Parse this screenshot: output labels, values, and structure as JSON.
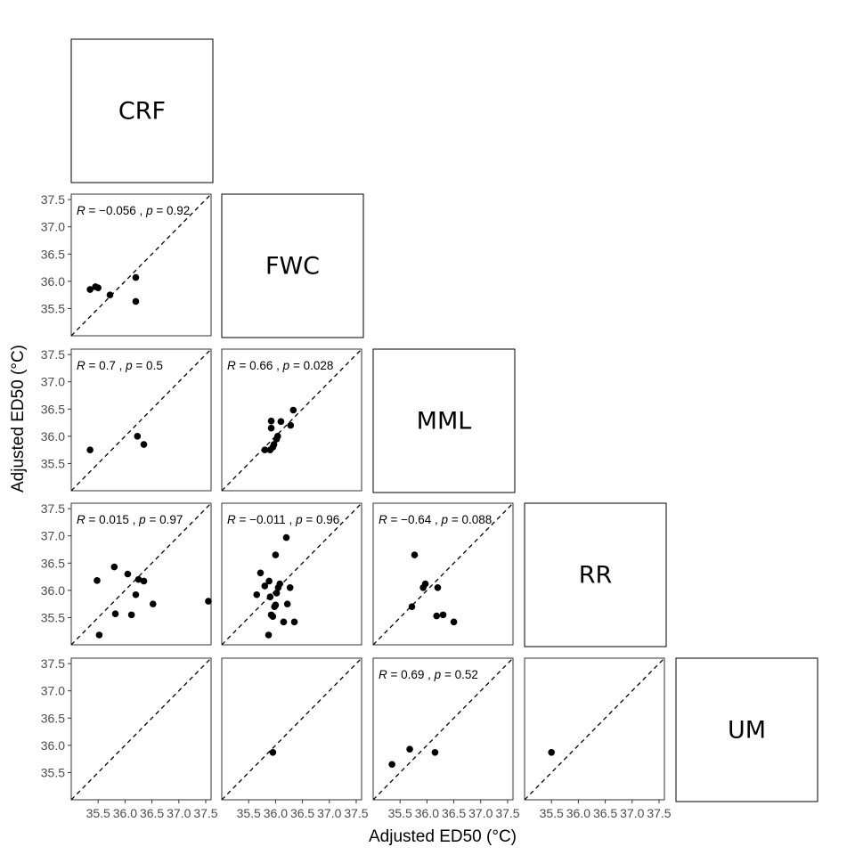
{
  "chart_data": {
    "type": "scatter",
    "layout": "lower-triangle pairwise scatterplot matrix",
    "xlabel": "Adjusted ED50 (°C)",
    "ylabel": "Adjusted ED50 (°C)",
    "xlim": [
      35.0,
      37.6
    ],
    "ylim": [
      35.0,
      37.6
    ],
    "xticks": [
      "35.5",
      "36.0",
      "36.5",
      "37.0",
      "37.5"
    ],
    "yticks": [
      "35.5",
      "36.0",
      "36.5",
      "37.0",
      "37.5"
    ],
    "reference_line": "y = x (dashed)",
    "point_color": "#000000",
    "diagonal_labels": [
      "CRF",
      "FWC",
      "MML",
      "RR",
      "UM"
    ],
    "panels": [
      {
        "row": 1,
        "col": 0,
        "y_site": "FWC",
        "x_site": "CRF",
        "annotation": {
          "r": "−0.056",
          "p": "0.92"
        },
        "points": [
          [
            35.35,
            35.85
          ],
          [
            35.45,
            35.9
          ],
          [
            35.5,
            35.88
          ],
          [
            35.72,
            35.75
          ],
          [
            36.2,
            36.07
          ],
          [
            36.2,
            35.63
          ]
        ]
      },
      {
        "row": 2,
        "col": 0,
        "y_site": "MML",
        "x_site": "CRF",
        "annotation": {
          "r": "0.7",
          "p": "0.5"
        },
        "points": [
          [
            35.35,
            35.75
          ],
          [
            36.23,
            36.0
          ],
          [
            36.35,
            35.85
          ]
        ]
      },
      {
        "row": 2,
        "col": 1,
        "y_site": "MML",
        "x_site": "FWC",
        "annotation": {
          "r": "0.66",
          "p": "0.028"
        },
        "points": [
          [
            35.8,
            35.75
          ],
          [
            35.9,
            35.75
          ],
          [
            35.92,
            36.15
          ],
          [
            35.92,
            36.28
          ],
          [
            35.95,
            35.8
          ],
          [
            35.97,
            35.85
          ],
          [
            36.02,
            35.95
          ],
          [
            36.04,
            36.0
          ],
          [
            36.1,
            36.27
          ],
          [
            36.28,
            36.2
          ],
          [
            36.33,
            36.48
          ]
        ]
      },
      {
        "row": 3,
        "col": 0,
        "y_site": "RR",
        "x_site": "CRF",
        "annotation": {
          "r": "0.015",
          "p": "0.97"
        },
        "points": [
          [
            35.48,
            36.18
          ],
          [
            35.52,
            35.18
          ],
          [
            35.8,
            36.43
          ],
          [
            35.82,
            35.57
          ],
          [
            36.05,
            36.3
          ],
          [
            36.12,
            35.55
          ],
          [
            36.2,
            35.92
          ],
          [
            36.25,
            36.2
          ],
          [
            36.35,
            36.17
          ],
          [
            36.52,
            35.75
          ],
          [
            37.55,
            35.8
          ]
        ]
      },
      {
        "row": 3,
        "col": 1,
        "y_site": "RR",
        "x_site": "FWC",
        "annotation": {
          "r": "−0.011",
          "p": "0.96"
        },
        "points": [
          [
            35.65,
            35.92
          ],
          [
            35.72,
            36.32
          ],
          [
            35.8,
            36.08
          ],
          [
            35.88,
            36.17
          ],
          [
            35.9,
            35.88
          ],
          [
            35.92,
            35.55
          ],
          [
            35.95,
            35.52
          ],
          [
            35.98,
            35.7
          ],
          [
            36.0,
            35.73
          ],
          [
            36.0,
            36.65
          ],
          [
            36.05,
            36.05
          ],
          [
            36.08,
            36.12
          ],
          [
            36.15,
            35.42
          ],
          [
            36.22,
            35.75
          ],
          [
            36.27,
            36.05
          ],
          [
            36.35,
            35.42
          ],
          [
            36.2,
            36.97
          ],
          [
            35.87,
            35.18
          ],
          [
            36.02,
            35.95
          ]
        ]
      },
      {
        "row": 3,
        "col": 2,
        "y_site": "RR",
        "x_site": "MML",
        "annotation": {
          "r": "−0.64",
          "p": "0.088"
        },
        "points": [
          [
            35.72,
            35.7
          ],
          [
            35.77,
            36.65
          ],
          [
            35.93,
            36.05
          ],
          [
            35.97,
            36.12
          ],
          [
            36.18,
            35.53
          ],
          [
            36.2,
            36.05
          ],
          [
            36.3,
            35.55
          ],
          [
            36.5,
            35.42
          ]
        ]
      },
      {
        "row": 4,
        "col": 0,
        "y_site": "UM",
        "x_site": "CRF",
        "annotation": null,
        "points": []
      },
      {
        "row": 4,
        "col": 1,
        "y_site": "UM",
        "x_site": "FWC",
        "annotation": null,
        "points": [
          [
            35.95,
            35.87
          ]
        ]
      },
      {
        "row": 4,
        "col": 2,
        "y_site": "UM",
        "x_site": "MML",
        "annotation": {
          "r": "0.69",
          "p": "0.52"
        },
        "points": [
          [
            35.35,
            35.65
          ],
          [
            35.68,
            35.93
          ],
          [
            36.15,
            35.87
          ]
        ]
      },
      {
        "row": 4,
        "col": 3,
        "y_site": "UM",
        "x_site": "RR",
        "annotation": null,
        "points": [
          [
            35.5,
            35.87
          ]
        ]
      }
    ]
  }
}
